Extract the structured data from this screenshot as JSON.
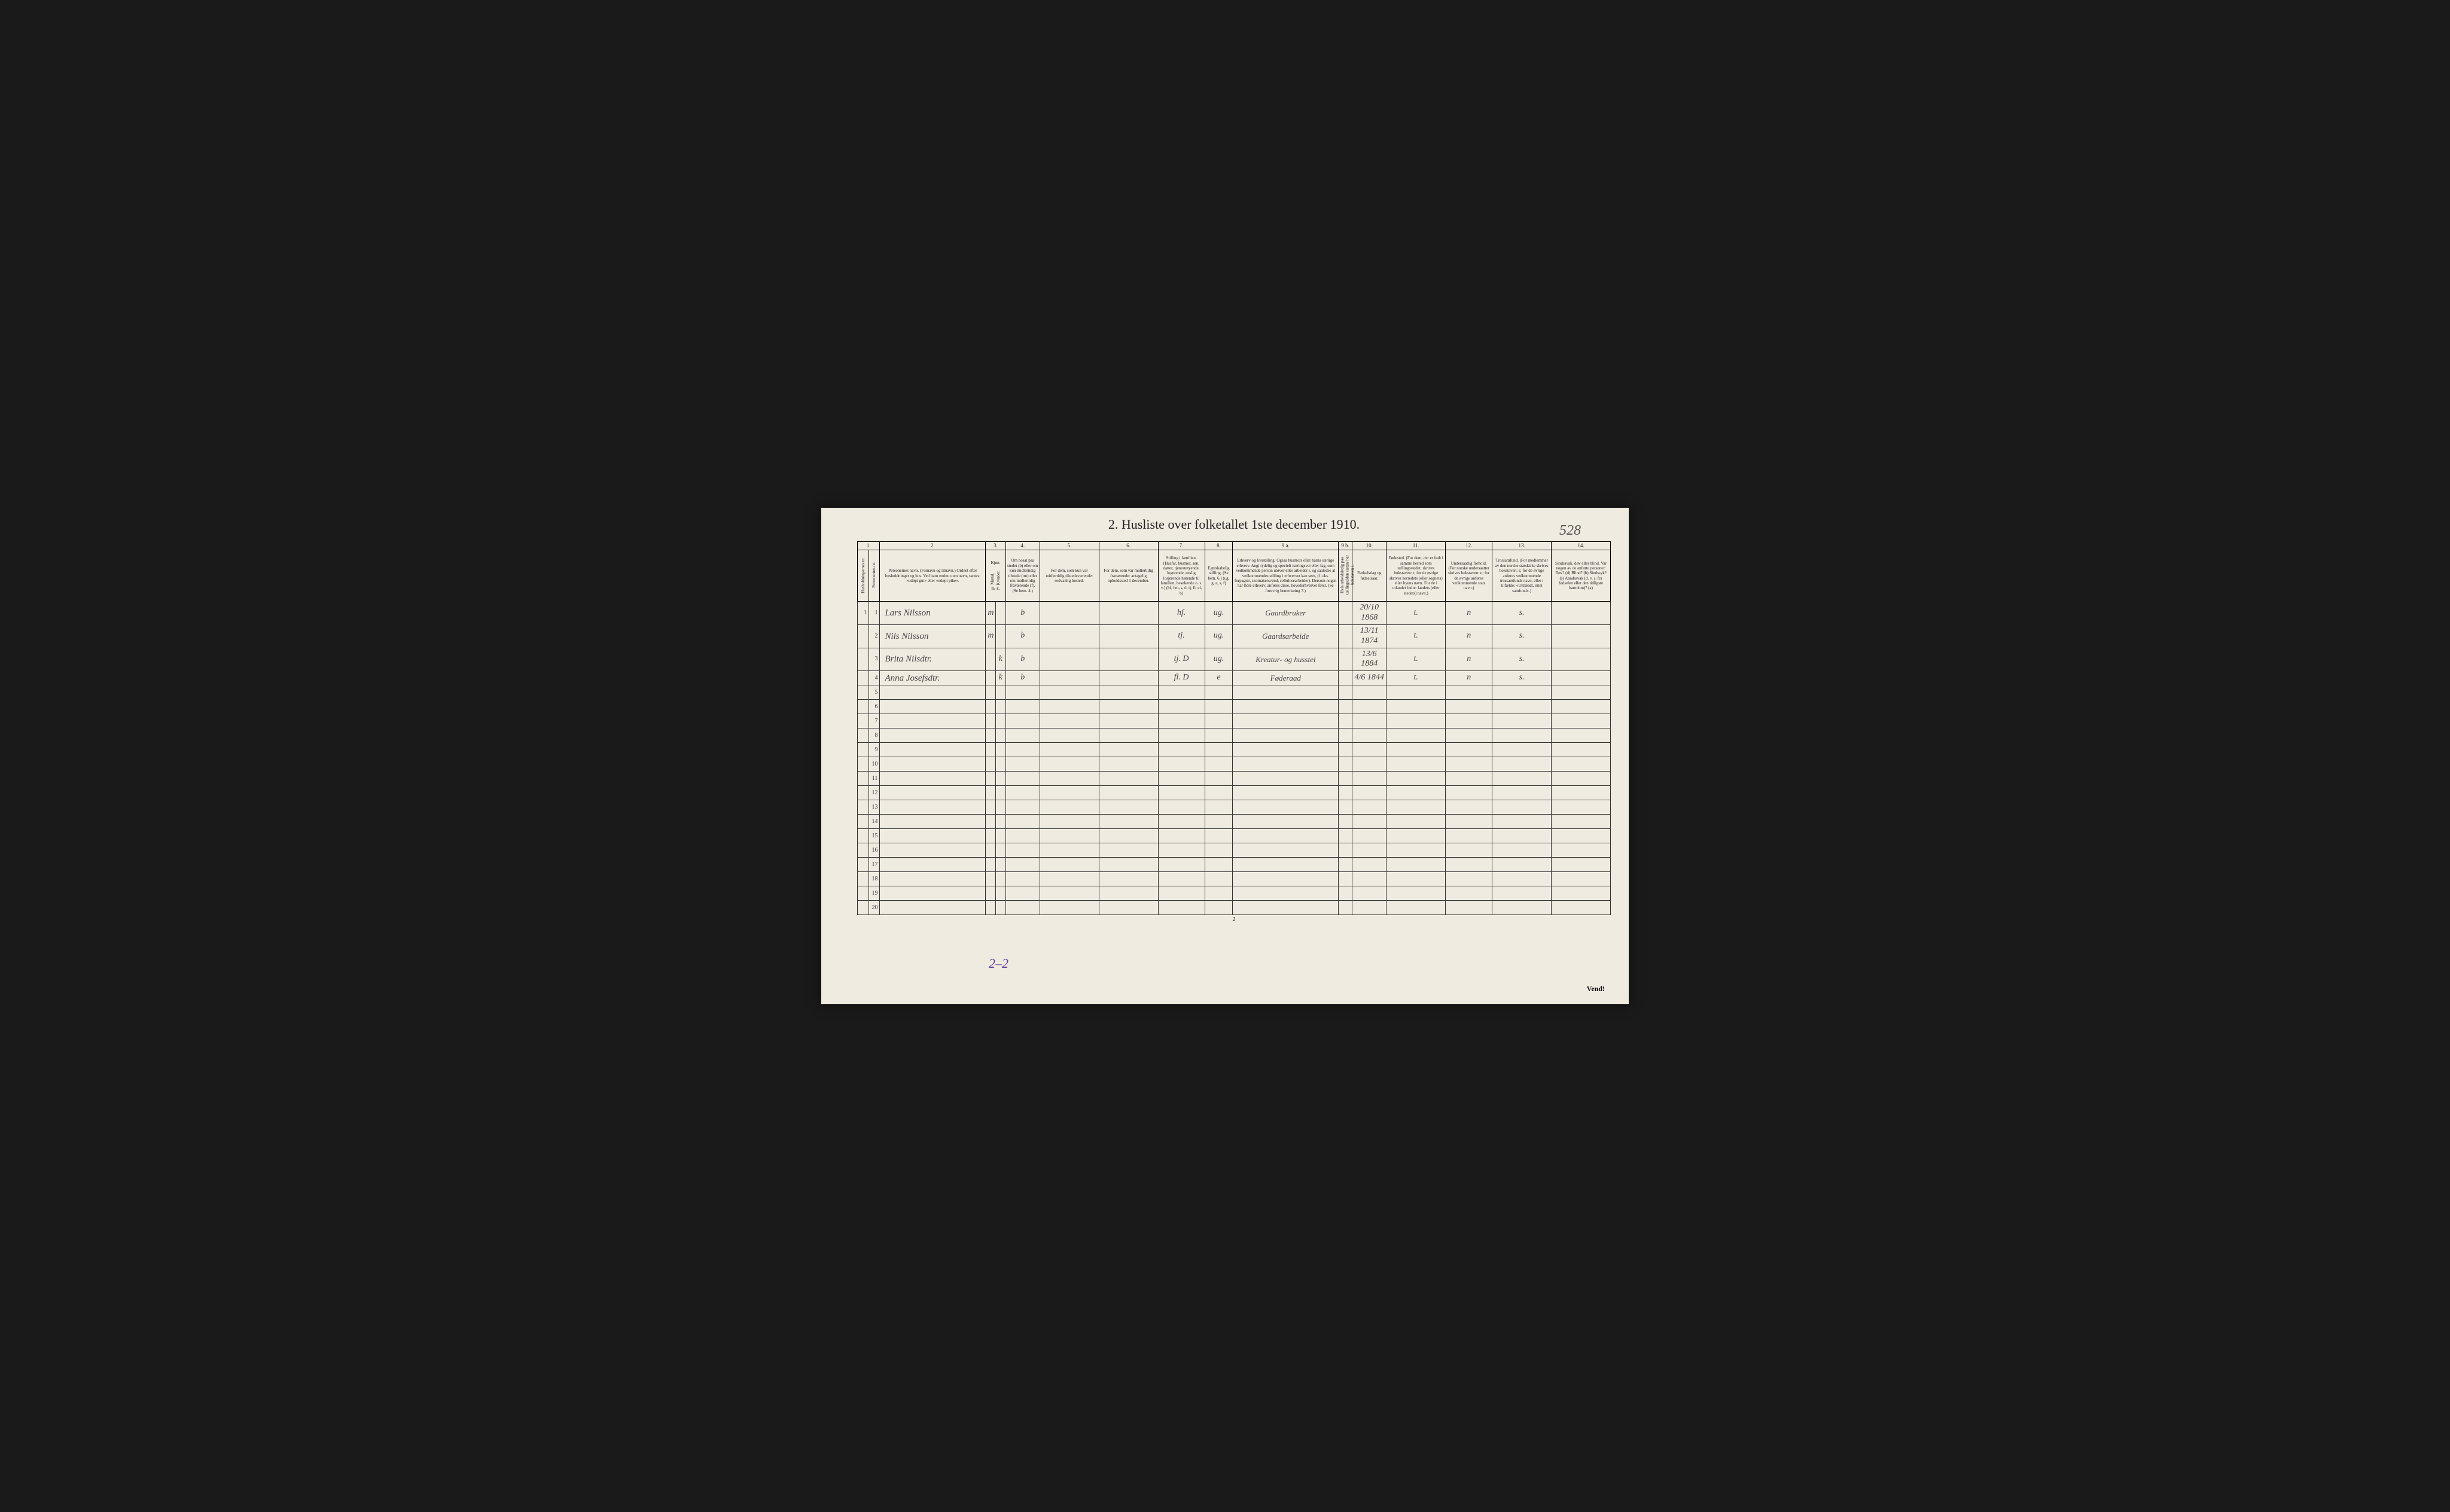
{
  "page_number_top": "528",
  "title": "2.  Husliste over folketallet 1ste december 1910.",
  "footer_page": "2",
  "vend_text": "Vend!",
  "purple_annotation": "2–2",
  "column_numbers": [
    "1.",
    "2.",
    "3.",
    "4.",
    "5.",
    "6.",
    "7.",
    "8.",
    "9 a.",
    "9 b.",
    "10.",
    "11.",
    "12.",
    "13.",
    "14."
  ],
  "headers": {
    "col1a": "Husholdningernes nr.",
    "col1b": "Personernes nr.",
    "col2": "Personernes navn.\n(Fornavn og tilnavn.)\nOrdnet efter husholdninger og hus.\nVed barn endnu uten navn, sættes: «udøpt gut» eller «udøpt pike».",
    "col3": "Kjøn.",
    "col3a": "Mænd.",
    "col3b": "Kvinder.",
    "col3sub": "m. k.",
    "col4": "Om bosat paa stedet (b) eller om kun midlertidig tilstede (mt) eller om midlertidig fraværende (f). (Se bem. 4.)",
    "col5": "For dem, som kun var midlertidig tilstedeværende:\nsedvanlig bosted.",
    "col6": "For dem, som var midlertidig fraværende:\nantagelig opholdssted 1 december.",
    "col7": "Stilling i familien.\n(Husfar, husmor, søn, datter, tjenestetyende, logerende, enslig losjerende hørende til familien, besøkende o. s. v.)\n(hf, hm, s, d, tj, fl, el, b)",
    "col8": "Egteskabelig stilling. (Se bem. 6.) (ug, g, e, s, f)",
    "col9a": "Erhverv og livsstilling.\nOgsaa husmors eller barns særlige erhverv.\nAngi tydelig og specielt næringsvei eller fag, som vedkommende person utøver eller arbeider i, og saaledes at vedkommendes stilling i erhvervet kan sees, (f. eks. forpagter, skomaker­svend, cellulosearbeider). Dersom nogen har flere erhverv, anføres disse, hovederh­vervet først.\n(Se forøvrig bemerkning 7.)",
    "col9b": "Hvis arbeidsledig paa tællingstiden sættes her bokstaven l.",
    "col10": "Fødselsdag og fødselsaar.",
    "col11": "Fødested.\n(For dem, der er født i samme herred som tællingsstedet, skrives bokstaven: t; for de øvrige skrives herredets (eller sognets) eller byens navn. For de i utlandet fødte: landets (eller stedets) navn.)",
    "col12": "Undersaatlig forhold.\n(For norske undersaatter skrives bokstaven: n; for de øvrige anføres vedkommende stats navn.)",
    "col13": "Trossamfund.\n(For medlemmer av den norske statskirke skrives bokstaven: s; for de øvrige anføres vedkommende trossamfunds navn, eller i tilfælde: «Uttræadt, intet samfund».)",
    "col14": "Sindssvak, døv eller blind.\nVar nogen av de anførte personer:\nDøv? (d)\nBlind? (b)\nSindssyk? (s)\nAandssvak (d. v. s. fra fødselen eller den tidligste barndom)? (a)"
  },
  "rows": [
    {
      "hh": "1",
      "pn": "1",
      "name": "Lars Nilsson",
      "m": "m",
      "k": "",
      "b": "b",
      "c5": "",
      "c6": "",
      "fam": "hf.",
      "eg": "ug.",
      "occ": "Gaardbruker",
      "l": "",
      "birth": "20/10 1868",
      "fplace": "t.",
      "nat": "n",
      "rel": "s.",
      "c14": ""
    },
    {
      "hh": "",
      "pn": "2",
      "name": "Nils Nilsson",
      "m": "m",
      "k": "",
      "b": "b",
      "c5": "",
      "c6": "",
      "fam": "tj.",
      "eg": "ug.",
      "occ": "Gaardsarbeide",
      "l": "",
      "birth": "13/11 1874",
      "fplace": "t.",
      "nat": "n",
      "rel": "s.",
      "c14": ""
    },
    {
      "hh": "",
      "pn": "3",
      "name": "Brita Nilsdtr.",
      "m": "",
      "k": "k",
      "b": "b",
      "c5": "",
      "c6": "",
      "fam": "tj.  D",
      "eg": "ug.",
      "occ": "Kreatur- og husstel",
      "l": "",
      "birth": "13/6 1884",
      "fplace": "t.",
      "nat": "n",
      "rel": "s.",
      "c14": ""
    },
    {
      "hh": "",
      "pn": "4",
      "name": "Anna Josefsdtr.",
      "m": "",
      "k": "k",
      "b": "b",
      "c5": "",
      "c6": "",
      "fam": "fl.  D",
      "eg": "e",
      "occ": "Føderaad",
      "l": "",
      "birth": "4/6 1844",
      "fplace": "t.",
      "nat": "n",
      "rel": "s.",
      "c14": ""
    }
  ],
  "empty_row_numbers": [
    "5",
    "6",
    "7",
    "8",
    "9",
    "10",
    "11",
    "12",
    "13",
    "14",
    "15",
    "16",
    "17",
    "18",
    "19",
    "20"
  ]
}
